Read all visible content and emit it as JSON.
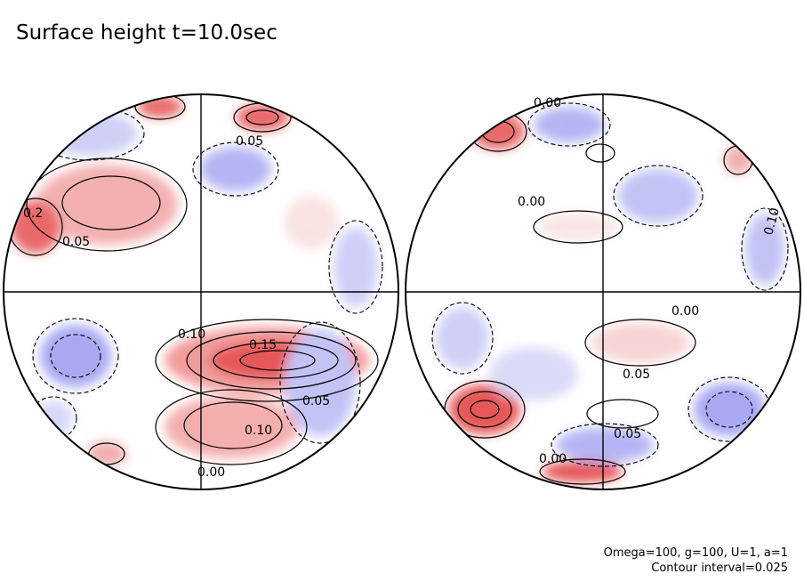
{
  "title": "Surface height t=10.0sec",
  "params_line1": "Omega=100, g=100, U=1, a=1",
  "params_line2": "Contour interval=0.025",
  "colors": {
    "positive": "#e23b3b",
    "negative": "#4a4ae0",
    "line": "#000000",
    "background": "#ffffff"
  },
  "left_hemisphere": {
    "contour_labels": [
      "0.05",
      "0.05",
      "0.10",
      "0.15",
      "0.05",
      "0.10",
      "0.00",
      "0.2"
    ]
  },
  "right_hemisphere": {
    "contour_labels": [
      "0.00",
      "0.00",
      "0.00",
      "0.05",
      "0.05",
      "0.10",
      "0.00"
    ]
  }
}
